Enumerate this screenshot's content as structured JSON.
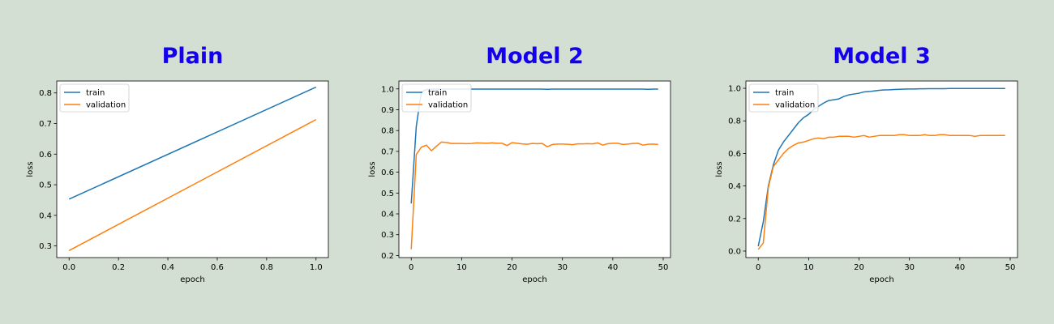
{
  "panels": [
    {
      "title": "Plain"
    },
    {
      "title": "Model 2"
    },
    {
      "title": "Model 3"
    }
  ],
  "chart_data": [
    {
      "type": "line",
      "title": "Plain",
      "xlabel": "epoch",
      "ylabel": "loss",
      "xlim": [
        -0.05,
        1.05
      ],
      "ylim": [
        0.262,
        0.839
      ],
      "xticks": [
        0.0,
        0.2,
        0.4,
        0.6,
        0.8,
        1.0
      ],
      "xtick_labels": [
        "0.0",
        "0.2",
        "0.4",
        "0.6",
        "0.8",
        "1.0"
      ],
      "yticks": [
        0.3,
        0.4,
        0.5,
        0.6,
        0.7,
        0.8
      ],
      "ytick_labels": [
        "0.3",
        "0.4",
        "0.5",
        "0.6",
        "0.7",
        "0.8"
      ],
      "legend_position": "top-left",
      "colors": {
        "train": "#1f77b4",
        "validation": "#ff7f0e"
      },
      "x": [
        0,
        1
      ],
      "series": [
        {
          "name": "train",
          "values": [
            0.453,
            0.819
          ]
        },
        {
          "name": "validation",
          "values": [
            0.285,
            0.713
          ]
        }
      ]
    },
    {
      "type": "line",
      "title": "Model 2",
      "xlabel": "epoch",
      "ylabel": "loss",
      "xlim": [
        -2.45,
        51.45
      ],
      "ylim": [
        0.19,
        1.038
      ],
      "xticks": [
        0,
        10,
        20,
        30,
        40,
        50
      ],
      "xtick_labels": [
        "0",
        "10",
        "20",
        "30",
        "40",
        "50"
      ],
      "yticks": [
        0.2,
        0.3,
        0.4,
        0.5,
        0.6,
        0.7,
        0.8,
        0.9,
        1.0
      ],
      "ytick_labels": [
        "0.2",
        "0.3",
        "0.4",
        "0.5",
        "0.6",
        "0.7",
        "0.8",
        "0.9",
        "1.0"
      ],
      "legend_position": "top-left",
      "colors": {
        "train": "#1f77b4",
        "validation": "#ff7f0e"
      },
      "x_start": 0,
      "series": [
        {
          "name": "train",
          "values": [
            0.45,
            0.82,
            0.985,
            0.997,
            0.998,
            0.999,
            0.999,
            0.999,
            0.999,
            0.999,
            0.999,
            0.999,
            0.999,
            0.999,
            0.999,
            0.999,
            0.999,
            0.999,
            0.999,
            0.999,
            0.999,
            0.999,
            0.999,
            0.999,
            0.999,
            0.999,
            0.999,
            0.998,
            0.999,
            0.999,
            0.999,
            0.999,
            0.999,
            0.999,
            0.999,
            0.999,
            0.999,
            0.999,
            0.999,
            0.999,
            0.999,
            0.999,
            0.999,
            0.999,
            0.999,
            0.999,
            0.999,
            0.998,
            0.999,
            0.999
          ]
        },
        {
          "name": "validation",
          "values": [
            0.23,
            0.685,
            0.72,
            0.73,
            0.703,
            0.725,
            0.745,
            0.743,
            0.738,
            0.738,
            0.738,
            0.737,
            0.738,
            0.741,
            0.74,
            0.739,
            0.741,
            0.739,
            0.739,
            0.728,
            0.742,
            0.739,
            0.736,
            0.734,
            0.738,
            0.737,
            0.738,
            0.722,
            0.733,
            0.735,
            0.735,
            0.734,
            0.732,
            0.736,
            0.736,
            0.737,
            0.736,
            0.741,
            0.73,
            0.737,
            0.739,
            0.739,
            0.733,
            0.735,
            0.738,
            0.739,
            0.73,
            0.734,
            0.735,
            0.733
          ]
        }
      ]
    },
    {
      "type": "line",
      "title": "Model 3",
      "xlabel": "epoch",
      "ylabel": "loss",
      "xlim": [
        -2.45,
        51.45
      ],
      "ylim": [
        -0.04,
        1.045
      ],
      "xticks": [
        0,
        10,
        20,
        30,
        40,
        50
      ],
      "xtick_labels": [
        "0",
        "10",
        "20",
        "30",
        "40",
        "50"
      ],
      "yticks": [
        0.0,
        0.2,
        0.4,
        0.6,
        0.8,
        1.0
      ],
      "ytick_labels": [
        "0.0",
        "0.2",
        "0.4",
        "0.6",
        "0.8",
        "1.0"
      ],
      "legend_position": "top-left",
      "colors": {
        "train": "#1f77b4",
        "validation": "#ff7f0e"
      },
      "x_start": 0,
      "series": [
        {
          "name": "train",
          "values": [
            0.03,
            0.18,
            0.4,
            0.53,
            0.62,
            0.67,
            0.71,
            0.75,
            0.79,
            0.82,
            0.84,
            0.87,
            0.89,
            0.91,
            0.925,
            0.93,
            0.935,
            0.95,
            0.96,
            0.965,
            0.97,
            0.978,
            0.98,
            0.984,
            0.988,
            0.99,
            0.991,
            0.993,
            0.994,
            0.995,
            0.996,
            0.996,
            0.997,
            0.997,
            0.998,
            0.998,
            0.998,
            0.998,
            0.999,
            0.999,
            0.999,
            0.999,
            0.999,
            0.999,
            0.999,
            0.999,
            0.999,
            0.999,
            0.999,
            0.999
          ]
        },
        {
          "name": "validation",
          "values": [
            0.01,
            0.05,
            0.39,
            0.52,
            0.56,
            0.6,
            0.63,
            0.65,
            0.665,
            0.67,
            0.68,
            0.69,
            0.695,
            0.69,
            0.7,
            0.7,
            0.705,
            0.705,
            0.705,
            0.7,
            0.705,
            0.71,
            0.7,
            0.705,
            0.71,
            0.71,
            0.71,
            0.71,
            0.715,
            0.715,
            0.71,
            0.71,
            0.71,
            0.715,
            0.71,
            0.71,
            0.715,
            0.715,
            0.71,
            0.71,
            0.71,
            0.71,
            0.71,
            0.705,
            0.71,
            0.71,
            0.71,
            0.71,
            0.71,
            0.71
          ]
        }
      ]
    }
  ]
}
